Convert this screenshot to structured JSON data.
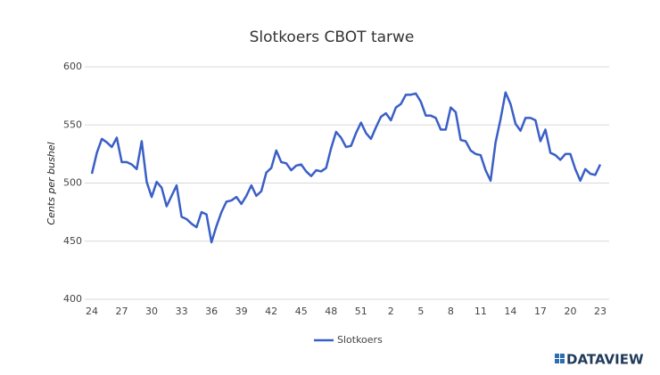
{
  "chart_data": {
    "type": "line",
    "title": "Slotkoers CBOT tarwe",
    "y_label": "Cents per bushel",
    "categories": [
      "24",
      null,
      null,
      null,
      null,
      null,
      "27",
      null,
      null,
      null,
      null,
      null,
      "30",
      null,
      null,
      null,
      null,
      null,
      "33",
      null,
      null,
      null,
      null,
      null,
      "36",
      null,
      null,
      null,
      null,
      null,
      "39",
      null,
      null,
      null,
      null,
      null,
      "42",
      null,
      null,
      null,
      null,
      null,
      "45",
      null,
      null,
      null,
      null,
      null,
      "48",
      null,
      null,
      null,
      null,
      null,
      "51",
      null,
      null,
      null,
      null,
      null,
      "2",
      null,
      null,
      null,
      null,
      null,
      "5",
      null,
      null,
      null,
      null,
      null,
      "8",
      null,
      null,
      null,
      null,
      null,
      "11",
      null,
      null,
      null,
      null,
      null,
      "14",
      null,
      null,
      null,
      null,
      null,
      "17",
      null,
      null,
      null,
      null,
      null,
      "20",
      null,
      null,
      null,
      null,
      null,
      "23"
    ],
    "series": [
      {
        "name": "Slotkoers",
        "color": "#3a5fc6",
        "values": [
          508,
          526,
          538,
          535,
          531,
          539,
          518,
          518,
          516,
          512,
          536,
          501,
          488,
          501,
          496,
          480,
          489,
          498,
          471,
          469,
          465,
          462,
          475,
          473,
          449,
          463,
          475,
          484,
          485,
          488,
          482,
          489,
          498,
          489,
          493,
          509,
          513,
          528,
          518,
          517,
          511,
          515,
          516,
          510,
          506,
          511,
          510,
          513,
          530,
          544,
          539,
          531,
          532,
          543,
          552,
          543,
          538,
          548,
          557,
          560,
          554,
          565,
          568,
          576,
          576,
          577,
          570,
          558,
          558,
          556,
          546,
          546,
          565,
          561,
          537,
          536,
          528,
          525,
          524,
          511,
          502,
          535,
          555,
          578,
          568,
          551,
          545,
          556,
          556,
          554,
          536,
          546,
          526,
          524,
          520,
          525,
          525,
          512,
          502,
          512,
          508,
          507,
          516
        ]
      }
    ],
    "ylim": [
      400,
      600
    ],
    "yticks": [
      400,
      450,
      500,
      550,
      600
    ],
    "grid": true,
    "legend": "bottom",
    "brand": "DATAVIEW"
  }
}
